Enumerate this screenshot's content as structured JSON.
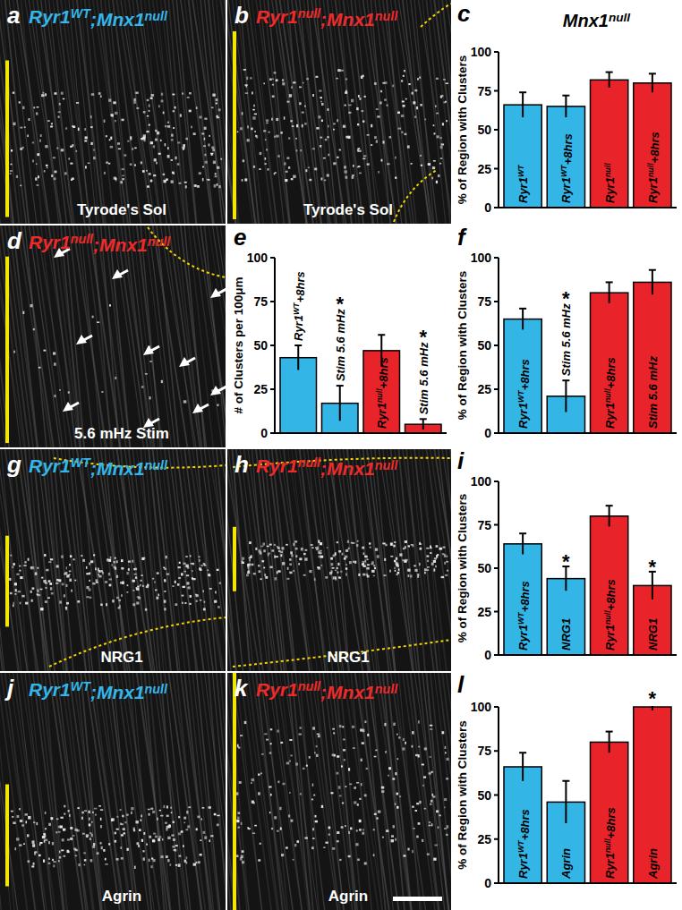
{
  "images": [
    {
      "label": "a",
      "genotype": "Ryr1WT;Mnx1null",
      "color": "#35b6e8",
      "condition": "Tyrode's Sol"
    },
    {
      "label": "b",
      "genotype": "Ryr1null;Mnx1null",
      "color": "#ee2a2a",
      "condition": "Tyrode's Sol"
    },
    {
      "label": "d",
      "genotype": "Ryr1null;Mnx1null",
      "color": "#ee2a2a",
      "condition": "5.6 mHz Stim"
    },
    {
      "label": "g",
      "genotype": "Ryr1WT;Mnx1null",
      "color": "#35b6e8",
      "condition": "NRG1"
    },
    {
      "label": "h",
      "genotype": "Ryr1null;Mnx1null",
      "color": "#ee2a2a",
      "condition": "NRG1"
    },
    {
      "label": "j",
      "genotype": "Ryr1WT;Mnx1null",
      "color": "#35b6e8",
      "condition": "Agrin"
    },
    {
      "label": "k",
      "genotype": "Ryr1null;Mnx1null",
      "color": "#ee2a2a",
      "condition": "Agrin"
    }
  ],
  "chart_data": [
    {
      "type": "bar",
      "label": "c",
      "title": "Mnx1null",
      "ylabel": "% of Region with Clusters",
      "categories": [
        "Ryr1WT",
        "Ryr1WT+8hrs",
        "Ryr1null",
        "Ryr1null+8hrs"
      ],
      "values": [
        66,
        65,
        82,
        80
      ],
      "errors": [
        8,
        7,
        5,
        6
      ],
      "colors": [
        "#33b5e5",
        "#33b5e5",
        "#e8232a",
        "#e8232a"
      ],
      "ylim": [
        0,
        100
      ],
      "yticks": [
        0,
        25,
        50,
        75,
        100
      ]
    },
    {
      "type": "bar",
      "label": "e",
      "ylabel": "# of Clusters per 100μm",
      "categories": [
        "Ryr1WT+8hrs",
        "Stim 5.6 mHz",
        "Ryr1null+8hrs",
        "Stim 5.6 mHz"
      ],
      "values": [
        43,
        17,
        47,
        5
      ],
      "errors": [
        7,
        10,
        9,
        3
      ],
      "significance": [
        null,
        "*",
        null,
        "*"
      ],
      "colors": [
        "#33b5e5",
        "#33b5e5",
        "#e8232a",
        "#e8232a"
      ],
      "ylim": [
        0,
        100
      ],
      "yticks": [
        0,
        25,
        50,
        75,
        100
      ]
    },
    {
      "type": "bar",
      "label": "f",
      "ylabel": "% of Region with Clusters",
      "categories": [
        "Ryr1WT+8hrs",
        "Stim 5.6 mHz",
        "Ryr1null+8hrs",
        "Stim 5.6 mHz"
      ],
      "values": [
        65,
        21,
        80,
        86
      ],
      "errors": [
        6,
        9,
        6,
        7
      ],
      "significance": [
        null,
        "*",
        null,
        null
      ],
      "colors": [
        "#33b5e5",
        "#33b5e5",
        "#e8232a",
        "#e8232a"
      ],
      "ylim": [
        0,
        100
      ],
      "yticks": [
        0,
        25,
        50,
        75,
        100
      ]
    },
    {
      "type": "bar",
      "label": "i",
      "ylabel": "% of Region with Clusters",
      "categories": [
        "Ryr1WT+8hrs",
        "NRG1",
        "Ryr1null+8hrs",
        "NRG1"
      ],
      "values": [
        64,
        44,
        80,
        40
      ],
      "errors": [
        6,
        7,
        6,
        8
      ],
      "significance": [
        null,
        "*",
        null,
        "*"
      ],
      "colors": [
        "#33b5e5",
        "#33b5e5",
        "#e8232a",
        "#e8232a"
      ],
      "ylim": [
        0,
        100
      ],
      "yticks": [
        0,
        25,
        50,
        75,
        100
      ]
    },
    {
      "type": "bar",
      "label": "l",
      "ylabel": "% of Region with Clusters",
      "categories": [
        "Ryr1WT+8hrs",
        "Agrin",
        "Ryr1null+8hrs",
        "Agrin"
      ],
      "values": [
        66,
        46,
        80,
        100
      ],
      "errors": [
        8,
        12,
        6,
        2
      ],
      "significance": [
        null,
        null,
        null,
        "*"
      ],
      "colors": [
        "#33b5e5",
        "#33b5e5",
        "#e8232a",
        "#e8232a"
      ],
      "ylim": [
        0,
        100
      ],
      "yticks": [
        0,
        25,
        50,
        75,
        100
      ]
    }
  ]
}
